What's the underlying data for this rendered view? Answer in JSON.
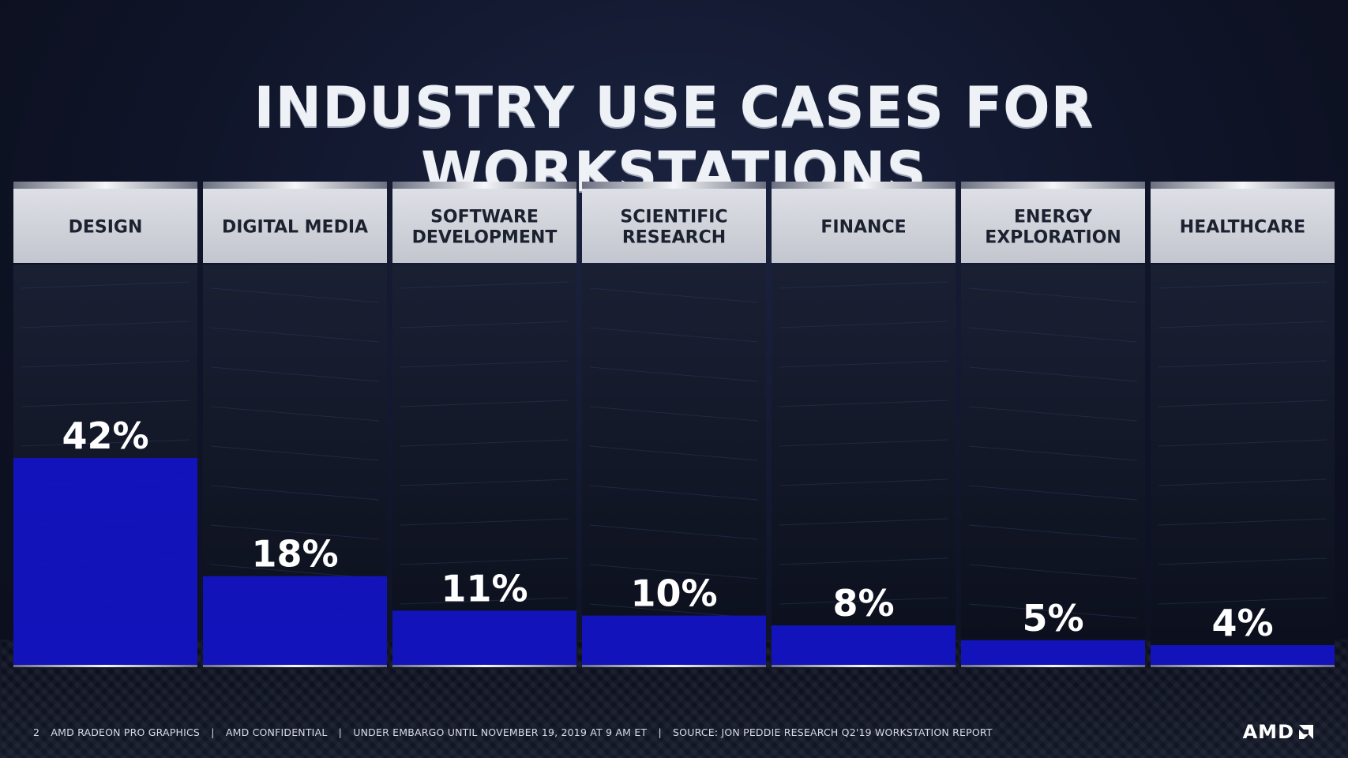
{
  "title": "INDUSTRY USE CASES FOR WORKSTATIONS",
  "chart_data": {
    "type": "bar",
    "categories": [
      [
        "DESIGN"
      ],
      [
        "DIGITAL MEDIA"
      ],
      [
        "SOFTWARE",
        "DEVELOPMENT"
      ],
      [
        "SCIENTIFIC",
        "RESEARCH"
      ],
      [
        "FINANCE"
      ],
      [
        "ENERGY",
        "EXPLORATION"
      ],
      [
        "HEALTHCARE"
      ]
    ],
    "values": [
      42,
      18,
      11,
      10,
      8,
      5,
      4
    ],
    "value_labels": [
      "42%",
      "18%",
      "11%",
      "10%",
      "8%",
      "5%",
      "4%"
    ],
    "ylim": [
      0,
      100
    ],
    "colors": {
      "bar": "#1414c8",
      "header": "#c9cbd2",
      "header_text": "#1c2130",
      "label": "#ffffff"
    }
  },
  "footer": {
    "page_number": "2",
    "items": [
      "AMD RADEON PRO GRAPHICS",
      "|",
      "AMD CONFIDENTIAL",
      "|",
      "UNDER EMBARGO UNTIL NOVEMBER 19, 2019 AT 9 AM ET",
      "|",
      "SOURCE: JON PEDDIE RESEARCH Q2'19 WORKSTATION REPORT"
    ]
  },
  "logo": {
    "text": "AMD",
    "icon": "amd-arrow-icon"
  }
}
